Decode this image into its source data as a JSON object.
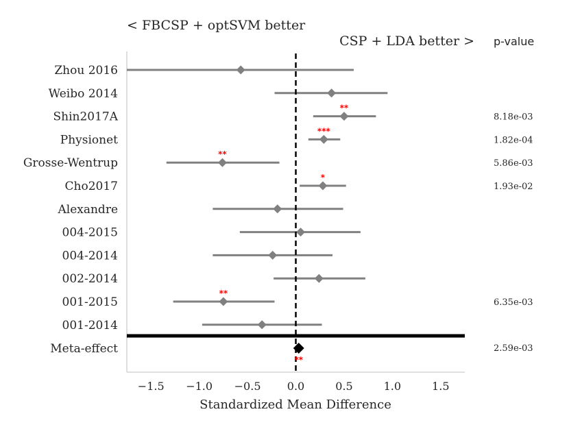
{
  "chart_data": {
    "type": "forest",
    "header_left": "< FBCSP + optSVM better",
    "header_right": "CSP + LDA better >",
    "pvalue_header": "p-value",
    "xlabel": "Standardized Mean Difference",
    "xlim": [
      -1.75,
      1.75
    ],
    "xticks": [
      -1.5,
      -1.0,
      -0.5,
      0.0,
      0.5,
      1.0,
      1.5
    ],
    "xtick_labels": [
      "−1.5",
      "−1.0",
      "−0.5",
      "0.0",
      "0.5",
      "1.0",
      "1.5"
    ],
    "reference_line": 0.0,
    "studies": [
      {
        "name": "Zhou 2016",
        "estimate": -0.57,
        "ci": [
          -1.75,
          0.6
        ],
        "stars": "",
        "pvalue": ""
      },
      {
        "name": "Weibo 2014",
        "estimate": 0.37,
        "ci": [
          -0.22,
          0.95
        ],
        "stars": "",
        "pvalue": ""
      },
      {
        "name": "Shin2017A",
        "estimate": 0.5,
        "ci": [
          0.18,
          0.83
        ],
        "stars": "**",
        "pvalue": "8.18e-03"
      },
      {
        "name": "Physionet",
        "estimate": 0.29,
        "ci": [
          0.13,
          0.46
        ],
        "stars": "***",
        "pvalue": "1.82e-04"
      },
      {
        "name": "Grosse-Wentrup",
        "estimate": -0.76,
        "ci": [
          -1.34,
          -0.17
        ],
        "stars": "**",
        "pvalue": "5.86e-03"
      },
      {
        "name": "Cho2017",
        "estimate": 0.28,
        "ci": [
          0.04,
          0.52
        ],
        "stars": "*",
        "pvalue": "1.93e-02"
      },
      {
        "name": "Alexandre",
        "estimate": -0.19,
        "ci": [
          -0.86,
          0.49
        ],
        "stars": "",
        "pvalue": ""
      },
      {
        "name": "004-2015",
        "estimate": 0.05,
        "ci": [
          -0.58,
          0.67
        ],
        "stars": "",
        "pvalue": ""
      },
      {
        "name": "004-2014",
        "estimate": -0.24,
        "ci": [
          -0.86,
          0.38
        ],
        "stars": "",
        "pvalue": ""
      },
      {
        "name": "002-2014",
        "estimate": 0.24,
        "ci": [
          -0.23,
          0.72
        ],
        "stars": "",
        "pvalue": ""
      },
      {
        "name": "001-2015",
        "estimate": -0.75,
        "ci": [
          -1.27,
          -0.22
        ],
        "stars": "**",
        "pvalue": "6.35e-03"
      },
      {
        "name": "001-2014",
        "estimate": -0.35,
        "ci": [
          -0.97,
          0.27
        ],
        "stars": "",
        "pvalue": ""
      }
    ],
    "meta": {
      "name": "Meta-effect",
      "estimate": 0.03,
      "stars": "**",
      "pvalue": "2.59e-03"
    },
    "colors": {
      "marker": "#808080",
      "meta_marker": "#000000",
      "stars": "#ff0000",
      "axis": "#cccccc",
      "text": "#262626"
    }
  }
}
